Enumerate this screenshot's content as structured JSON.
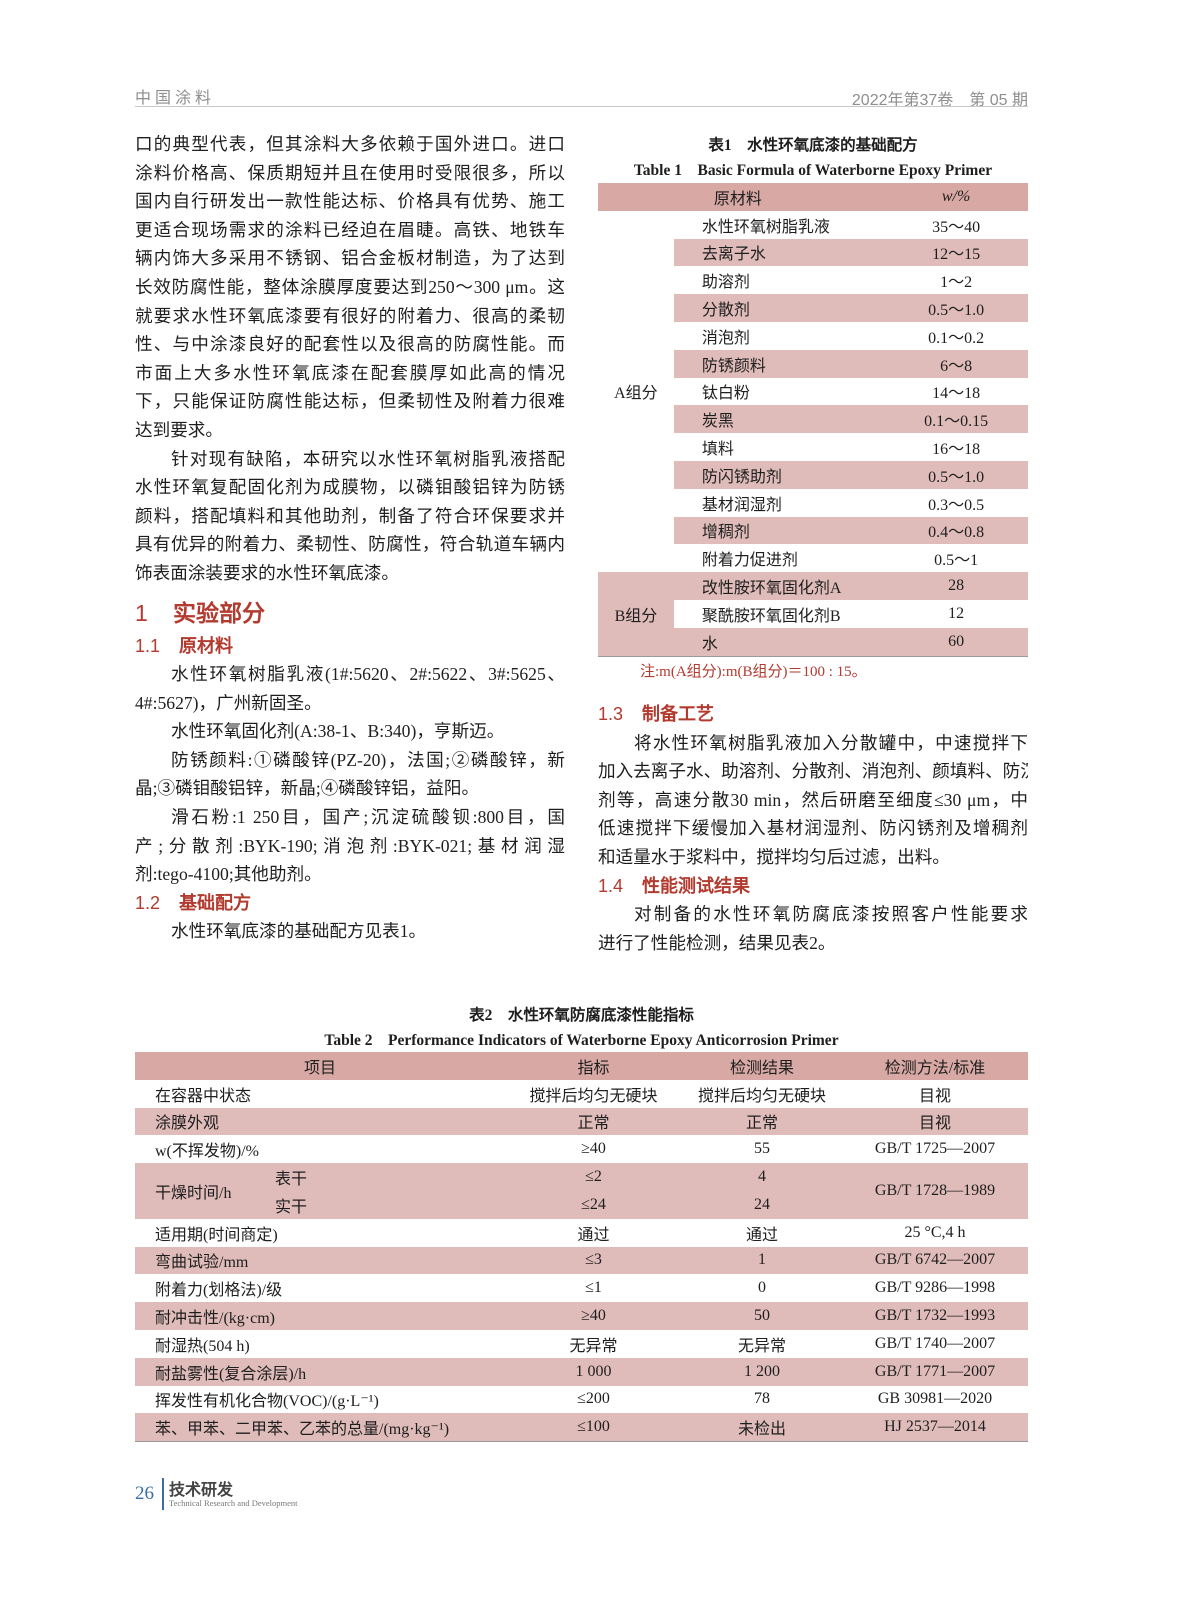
{
  "header": {
    "journal": "中国涂料",
    "issue": "2022年第37卷　第 05 期"
  },
  "left_column": {
    "p1": [
      "口的典型代表，但其涂料大多依赖于国外进口。进口",
      "涂料价格高、保质期短并且在使用时受限很多，所以",
      "国内自行研发出一款性能达标、价格具有优势、施工",
      "更适合现场需求的涂料已经迫在眉睫。高铁、地铁车",
      "辆内饰大多采用不锈钢、铝合金板材制造，为了达到",
      "长效防腐性能，整体涂膜厚度要达到250～300 μm。这",
      "就要求水性环氧底漆要有很好的附着力、很高的柔韧",
      "性、与中涂漆良好的配套性以及很高的防腐性能。而",
      "市面上大多水性环氧底漆在配套膜厚如此高的情况",
      "下，只能保证防腐性能达标，但柔韧性及附着力很难",
      "达到要求。"
    ],
    "p2": [
      "针对现有缺陷，本研究以水性环氧树脂乳液搭配",
      "水性环氧复配固化剂为成膜物，以磷钼酸铝锌为防锈",
      "颜料，搭配填料和其他助剂，制备了符合环保要求并",
      "具有优异的附着力、柔韧性、防腐性，符合轨道车辆内",
      "饰表面涂装要求的水性环氧底漆。"
    ],
    "sec1": {
      "num": "1",
      "title": "实验部分"
    },
    "sec1_1": {
      "num": "1.1",
      "title": "原材料"
    },
    "p3": [
      "水性环氧树脂乳液(1#:5620、2#:5622、3#:5625、",
      "4#:5627)，广州新固圣。"
    ],
    "p4": [
      "水性环氧固化剂(A:38-1、B:340)，亨斯迈。"
    ],
    "p5": [
      "防锈颜料:①磷酸锌(PZ-20)，法国;②磷酸锌，新",
      "晶;③磷钼酸铝锌，新晶;④磷酸锌铝，益阳。"
    ],
    "p6": [
      "滑石粉:1 250目，国产;沉淀硫酸钡:800目，国",
      "产;分散剂:BYK-190;消泡剂:BYK-021;基材润湿",
      "剂:tego-4100;其他助剂。"
    ],
    "sec1_2": {
      "num": "1.2",
      "title": "基础配方"
    },
    "p7": [
      "水性环氧底漆的基础配方见表1。"
    ]
  },
  "right_column": {
    "sec1_3": {
      "num": "1.3",
      "title": "制备工艺"
    },
    "p8": [
      "将水性环氧树脂乳液加入分散罐中，中速搅拌下",
      "加入去离子水、助溶剂、分散剂、消泡剂、颜填料、防沉",
      "剂等，高速分散30 min，然后研磨至细度≤30 μm，中",
      "低速搅拌下缓慢加入基材润湿剂、防闪锈剂及增稠剂",
      "和适量水于浆料中，搅拌均匀后过滤，出料。"
    ],
    "sec1_4": {
      "num": "1.4",
      "title": "性能测试结果"
    },
    "p9": [
      "对制备的水性环氧防腐底漆按照客户性能要求",
      "进行了性能检测，结果见表2。"
    ]
  },
  "table1": {
    "title_cn": "表1　水性环氧底漆的基础配方",
    "title_en": "Table 1　Basic Formula of Waterborne Epoxy Primer",
    "headers": [
      "原材料",
      "w/%"
    ],
    "groups": [
      {
        "name": "A组分",
        "rows": [
          [
            "水性环氧树脂乳液",
            "35～40"
          ],
          [
            "去离子水",
            "12～15"
          ],
          [
            "助溶剂",
            "1～2"
          ],
          [
            "分散剂",
            "0.5～1.0"
          ],
          [
            "消泡剂",
            "0.1～0.2"
          ],
          [
            "防锈颜料",
            "6～8"
          ],
          [
            "钛白粉",
            "14～18"
          ],
          [
            "炭黑",
            "0.1～0.15"
          ],
          [
            "填料",
            "16～18"
          ],
          [
            "防闪锈助剂",
            "0.5～1.0"
          ],
          [
            "基材润湿剂",
            "0.3～0.5"
          ],
          [
            "增稠剂",
            "0.4～0.8"
          ],
          [
            "附着力促进剂",
            "0.5～1"
          ]
        ]
      },
      {
        "name": "B组分",
        "rows": [
          [
            "改性胺环氧固化剂A",
            "28"
          ],
          [
            "聚酰胺环氧固化剂B",
            "12"
          ],
          [
            "水",
            "60"
          ]
        ]
      }
    ],
    "note": "注:m(A组分):m(B组分)＝100 : 15。"
  },
  "table2": {
    "title_cn": "表2　水性环氧防腐底漆性能指标",
    "title_en": "Table 2　Performance Indicators of Waterborne Epoxy Anticorrosion Primer",
    "headers": [
      "项目",
      "指标",
      "检测结果",
      "检测方法/标准"
    ],
    "rows": [
      {
        "item": "在容器中状态",
        "spec": "搅拌后均匀无硬块",
        "result": "搅拌后均匀无硬块",
        "method": "目视"
      },
      {
        "item": "涂膜外观",
        "spec": "正常",
        "result": "正常",
        "method": "目视"
      },
      {
        "item": "w(不挥发物)/%",
        "spec": "≥40",
        "result": "55",
        "method": "GB/T 1725—2007"
      },
      {
        "item": "干燥时间/h",
        "sub": [
          {
            "name": "表干",
            "spec": "≤2",
            "result": "4"
          },
          {
            "name": "实干",
            "spec": "≤24",
            "result": "24"
          }
        ],
        "method": "GB/T 1728—1989"
      },
      {
        "item": "适用期(时间商定)",
        "spec": "通过",
        "result": "通过",
        "method": "25 °C,4 h"
      },
      {
        "item": "弯曲试验/mm",
        "spec": "≤3",
        "result": "1",
        "method": "GB/T 6742—2007"
      },
      {
        "item": "附着力(划格法)/级",
        "spec": "≤1",
        "result": "0",
        "method": "GB/T 9286—1998"
      },
      {
        "item": "耐冲击性/(kg·cm)",
        "spec": "≥40",
        "result": "50",
        "method": "GB/T 1732—1993"
      },
      {
        "item": "耐湿热(504 h)",
        "spec": "无异常",
        "result": "无异常",
        "method": "GB/T 1740—2007"
      },
      {
        "item": "耐盐雾性(复合涂层)/h",
        "spec": "1 000",
        "result": "1 200",
        "method": "GB/T 1771—2007"
      },
      {
        "item": "挥发性有机化合物(VOC)/(g·L⁻¹)",
        "spec": "≤200",
        "result": "78",
        "method": "GB 30981—2020"
      },
      {
        "item": "苯、甲苯、二甲苯、乙苯的总量/(mg·kg⁻¹)",
        "spec": "≤100",
        "result": "未检出",
        "method": "HJ 2537—2014"
      }
    ]
  },
  "footer": {
    "page": "26",
    "section_cn": "技术研发",
    "section_en": "Technical Research and Development"
  },
  "colors": {
    "heading": "#b23a2f",
    "row_pink": "#dfbcb9",
    "header_pink": "#d7a8a4",
    "footer_blue": "#3a6ea5"
  }
}
